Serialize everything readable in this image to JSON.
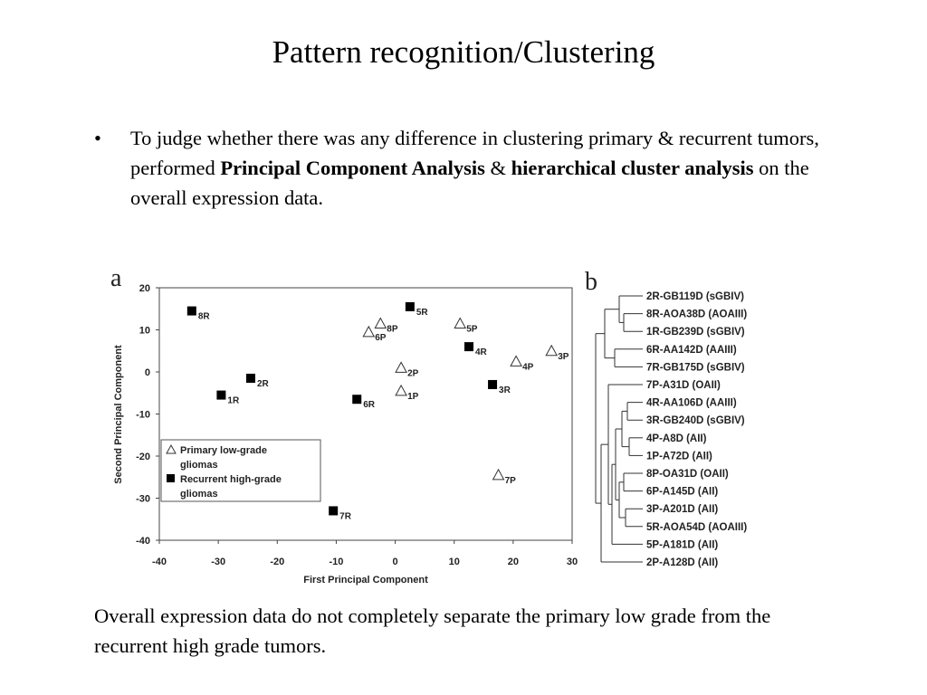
{
  "slide": {
    "title": "Pattern recognition/Clustering",
    "bullet": {
      "marker": "•",
      "part1": "To judge whether there was any difference in clustering primary & recurrent tumors, performed ",
      "bold1": "Principal Component Analysis",
      "part2": " & ",
      "bold2": "hierarchical cluster analysis",
      "part3": " on the overall expression data."
    },
    "conclusion": "Overall expression data do not completely separate the primary low grade from the recurrent high grade tumors."
  },
  "figure_a": {
    "panel_label": "a",
    "chart_data": {
      "type": "scatter",
      "xlabel": "First Principal Component",
      "ylabel": "Second Principal Component",
      "xlim": [
        -40,
        30
      ],
      "ylim": [
        -40,
        20
      ],
      "xticks": [
        -40,
        -30,
        -20,
        -10,
        0,
        10,
        20,
        30
      ],
      "yticks": [
        20,
        10,
        0,
        -10,
        -20,
        -30,
        -40
      ],
      "series": [
        {
          "name": "Primary low-grade gliomas",
          "marker": "open-triangle",
          "points": [
            {
              "label": "8P",
              "x": -2.5,
              "y": 11.5
            },
            {
              "label": "6P",
              "x": -4.5,
              "y": 9.5
            },
            {
              "label": "5P",
              "x": 11,
              "y": 11.5
            },
            {
              "label": "2P",
              "x": 1,
              "y": 1
            },
            {
              "label": "1P",
              "x": 1,
              "y": -4.5
            },
            {
              "label": "4P",
              "x": 20.5,
              "y": 2.5
            },
            {
              "label": "3P",
              "x": 26.5,
              "y": 5
            },
            {
              "label": "7P",
              "x": 17.5,
              "y": -24.5
            }
          ]
        },
        {
          "name": "Recurrent high-grade gliomas",
          "marker": "filled-square",
          "points": [
            {
              "label": "8R",
              "x": -34.5,
              "y": 14.5
            },
            {
              "label": "2R",
              "x": -24.5,
              "y": -1.5
            },
            {
              "label": "1R",
              "x": -29.5,
              "y": -5.5
            },
            {
              "label": "5R",
              "x": 2.5,
              "y": 15.5
            },
            {
              "label": "4R",
              "x": 12.5,
              "y": 6
            },
            {
              "label": "3R",
              "x": 16.5,
              "y": -3
            },
            {
              "label": "6R",
              "x": -6.5,
              "y": -6.5
            },
            {
              "label": "7R",
              "x": -10.5,
              "y": -33
            }
          ]
        }
      ],
      "legend": [
        {
          "marker": "open-triangle",
          "label_line1": "Primary low-grade",
          "label_line2": "gliomas"
        },
        {
          "marker": "filled-square",
          "label_line1": "Recurrent high-grade",
          "label_line2": "gliomas"
        }
      ]
    }
  },
  "figure_b": {
    "panel_label": "b",
    "chart_data": {
      "type": "dendrogram",
      "leaves": [
        "2R-GB119D (sGBIV)",
        "8R-AOA38D (AOAIII)",
        "1R-GB239D (sGBIV)",
        "6R-AA142D (AAIII)",
        "7R-GB175D (sGBIV)",
        "7P-A31D (OAII)",
        "4R-AA106D (AAIII)",
        "3R-GB240D (sGBIV)",
        "4P-A8D (AII)",
        "1P-A72D (AII)",
        "8P-OA31D (OAII)",
        "6P-A145D (AII)",
        "3P-A201D (AII)",
        "5R-AOA54D (AOAIII)",
        "5P-A181D (AII)",
        "2P-A128D (AII)"
      ]
    }
  }
}
